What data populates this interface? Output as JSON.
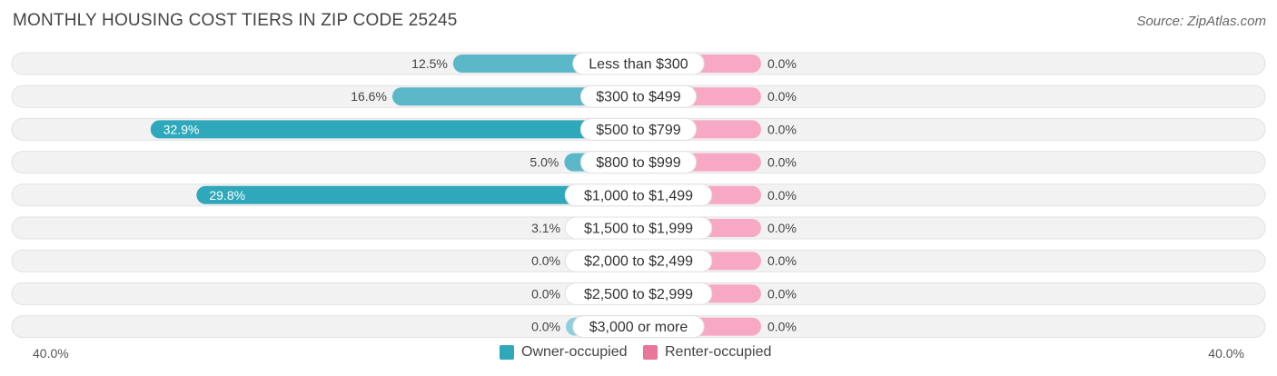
{
  "title": "MONTHLY HOUSING COST TIERS IN ZIP CODE 25245",
  "source": "Source: ZipAtlas.com",
  "colors": {
    "owner": "#5bb8c9",
    "owner_strong": "#2ea8ba",
    "renter": "#f7a8c4",
    "renter_swatch": "#e8769b",
    "row_bg": "#f1f1f1"
  },
  "axis": {
    "left_label": "40.0%",
    "right_label": "40.0%"
  },
  "legend": {
    "owner_label": "Owner-occupied",
    "renter_label": "Renter-occupied"
  },
  "chart_data": {
    "type": "bar",
    "orientation": "horizontal-diverging",
    "title": "MONTHLY HOUSING COST TIERS IN ZIP CODE 25245",
    "categories": [
      "Less than $300",
      "$300 to $499",
      "$500 to $799",
      "$800 to $999",
      "$1,000 to $1,499",
      "$1,500 to $1,999",
      "$2,000 to $2,499",
      "$2,500 to $2,999",
      "$3,000 or more"
    ],
    "series": [
      {
        "name": "Owner-occupied",
        "values": [
          12.5,
          16.6,
          32.9,
          5.0,
          29.8,
          3.1,
          0.0,
          0.0,
          0.0
        ],
        "labels": [
          "12.5%",
          "16.6%",
          "32.9%",
          "5.0%",
          "29.8%",
          "3.1%",
          "0.0%",
          "0.0%",
          "0.0%"
        ]
      },
      {
        "name": "Renter-occupied",
        "values": [
          0.0,
          0.0,
          0.0,
          0.0,
          0.0,
          0.0,
          0.0,
          0.0,
          0.0
        ],
        "labels": [
          "0.0%",
          "0.0%",
          "0.0%",
          "0.0%",
          "0.0%",
          "0.0%",
          "0.0%",
          "0.0%",
          "0.0%"
        ]
      }
    ],
    "xlim": [
      -40,
      40
    ],
    "legend_position": "bottom-center"
  }
}
